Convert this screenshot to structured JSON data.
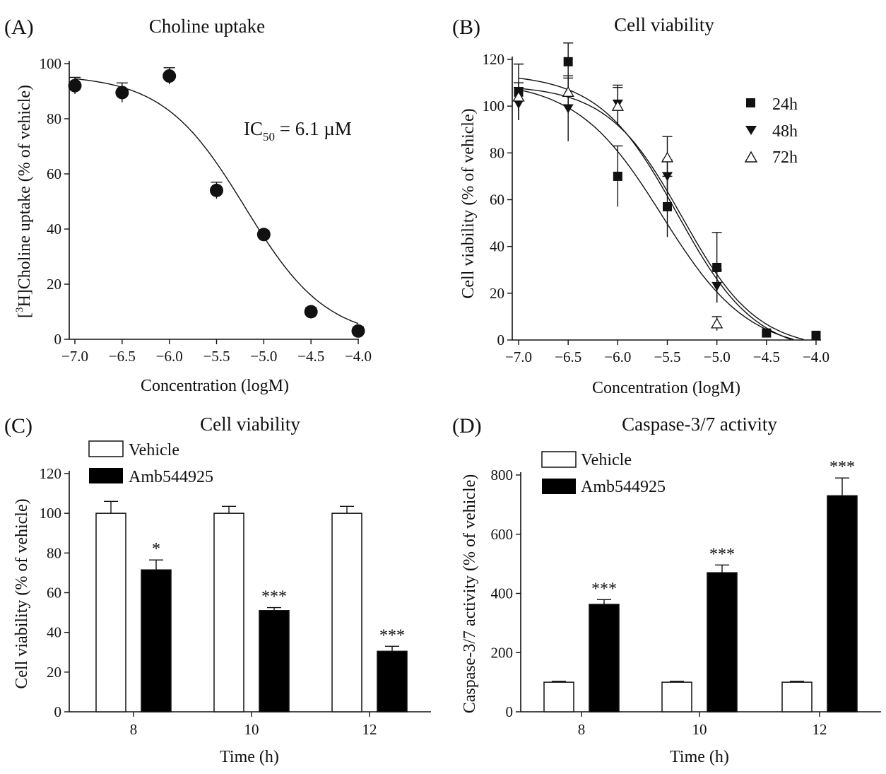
{
  "chart_data": [
    {
      "panel": "(A)",
      "type": "scatter",
      "title": "Choline uptake",
      "xlabel": "Concentration (logM)",
      "ylabel_prefix": "[",
      "ylabel_sup": "3",
      "ylabel_rest": "H]Choline uptake (% of vehicle)",
      "xlim": [
        -7.0,
        -4.0
      ],
      "ylim": [
        0,
        100
      ],
      "xticks": [
        -7.0,
        -6.5,
        -6.0,
        -5.5,
        -5.0,
        -4.5,
        -4.0
      ],
      "xtick_labels": [
        "−7.0",
        "−6.5",
        "−6.0",
        "−5.5",
        "−5.0",
        "−4.5",
        "−4.0"
      ],
      "yticks": [
        0,
        20,
        40,
        60,
        80,
        100
      ],
      "ytick_labels": [
        "0",
        "20",
        "40",
        "60",
        "80",
        "100"
      ],
      "annotation_main": "IC",
      "annotation_sub": "50",
      "annotation_rest": " = 6.1 µM",
      "series": [
        {
          "name": "Choline uptake",
          "marker": "circle",
          "x": [
            -7.0,
            -6.5,
            -6.0,
            -5.5,
            -5.0,
            -4.5,
            -4.0
          ],
          "y": [
            92,
            89.5,
            95.5,
            54,
            38,
            10,
            3
          ],
          "err": [
            3,
            3.5,
            3,
            3,
            1.5,
            1.5,
            1.5
          ]
        }
      ],
      "fit": {
        "top": 96,
        "bottom": 0,
        "logIC50": -5.2,
        "hill": 1.0
      }
    },
    {
      "panel": "(B)",
      "type": "scatter",
      "title": "Cell viability",
      "xlabel": "Concentration (logM)",
      "ylabel": "Cell viability (% of vehicle)",
      "xlim": [
        -7.0,
        -4.0
      ],
      "ylim": [
        0,
        120
      ],
      "xticks": [
        -7.0,
        -6.5,
        -6.0,
        -5.5,
        -5.0,
        -4.5,
        -4.0
      ],
      "xtick_labels": [
        "−7.0",
        "−6.5",
        "−6.0",
        "−5.5",
        "−5.0",
        "−4.5",
        "−4.0"
      ],
      "yticks": [
        0,
        20,
        40,
        60,
        80,
        100,
        120
      ],
      "ytick_labels": [
        "0",
        "20",
        "40",
        "60",
        "80",
        "100",
        "120"
      ],
      "legend": [
        "24h",
        "48h",
        "72h"
      ],
      "series": [
        {
          "name": "24h",
          "marker": "square",
          "x": [
            -7.0,
            -6.5,
            -6.0,
            -5.5,
            -5.0,
            -4.5,
            -4.0
          ],
          "y": [
            106,
            119,
            70,
            57,
            31,
            3,
            2
          ],
          "err": [
            12,
            8,
            13,
            13,
            15,
            0,
            0
          ]
        },
        {
          "name": "48h",
          "marker": "triangle-down",
          "x": [
            -7.0,
            -6.5,
            -6.0,
            -5.5,
            -5.0
          ],
          "y": [
            101,
            99,
            101,
            70,
            23
          ],
          "err": [
            7,
            14,
            8,
            7,
            7
          ]
        },
        {
          "name": "72h",
          "marker": "triangle-up-open",
          "x": [
            -7.0,
            -6.5,
            -6.0,
            -5.5,
            -5.0
          ],
          "y": [
            104,
            106,
            100,
            78,
            7
          ],
          "err": [
            6,
            6,
            8,
            9,
            3
          ]
        }
      ],
      "fits": [
        {
          "top": 111,
          "bottom": -5,
          "logIC50": -5.55,
          "hill": 1.0
        },
        {
          "top": 109,
          "bottom": -4,
          "logIC50": -5.35,
          "hill": 1.15
        },
        {
          "top": 114,
          "bottom": -6,
          "logIC50": -5.4,
          "hill": 1.1
        }
      ]
    },
    {
      "panel": "(C)",
      "type": "bar",
      "title": "Cell viability",
      "xlabel": "Time (h)",
      "ylabel": "Cell viability (% of vehicle)",
      "categories": [
        "8",
        "10",
        "12"
      ],
      "ylim": [
        0,
        120
      ],
      "yticks": [
        0,
        20,
        40,
        60,
        80,
        100,
        120
      ],
      "ytick_labels": [
        "0",
        "20",
        "40",
        "60",
        "80",
        "100",
        "120"
      ],
      "series": [
        {
          "name": "Vehicle",
          "fill": "#ffffff",
          "values": [
            100,
            100,
            100
          ],
          "err": [
            6,
            3.5,
            3.5
          ]
        },
        {
          "name": "Amb544925",
          "fill": "#000000",
          "values": [
            71.5,
            51,
            30.5
          ],
          "err": [
            5,
            1.5,
            2.5
          ]
        }
      ],
      "significance": [
        "*",
        "***",
        "***"
      ]
    },
    {
      "panel": "(D)",
      "type": "bar",
      "title": "Caspase-3/7 activity",
      "xlabel": "Time (h)",
      "ylabel": "Caspase-3/7 activity (% of vehicle)",
      "categories": [
        "8",
        "10",
        "12"
      ],
      "ylim": [
        0,
        800
      ],
      "yticks": [
        0,
        200,
        400,
        600,
        800
      ],
      "ytick_labels": [
        "0",
        "200",
        "400",
        "600",
        "800"
      ],
      "series": [
        {
          "name": "Vehicle",
          "fill": "#ffffff",
          "values": [
            100,
            100,
            100
          ],
          "err": [
            3,
            3,
            3
          ]
        },
        {
          "name": "Amb544925",
          "fill": "#000000",
          "values": [
            363,
            470,
            730
          ],
          "err": [
            16,
            26,
            60
          ]
        }
      ],
      "significance": [
        "***",
        "***",
        "***"
      ]
    }
  ]
}
